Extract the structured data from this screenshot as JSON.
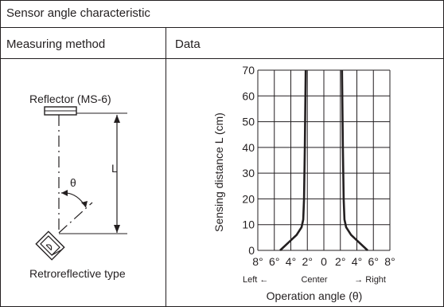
{
  "table": {
    "title": "Sensor angle characteristic",
    "col_method": "Measuring method",
    "col_data": "Data"
  },
  "method": {
    "reflector_label": "Reflector (MS-6)",
    "distance_label": "L",
    "angle_label": "θ",
    "sensor_label": "Retroreflective type"
  },
  "chart_data": {
    "type": "line",
    "xlabel": "Operation angle (θ)",
    "ylabel": "Sensing distance L (cm)",
    "x_tick_labels": [
      "8°",
      "6°",
      "4°",
      "2°",
      "0",
      "2°",
      "4°",
      "6°",
      "8°"
    ],
    "y_tick_labels": [
      "0",
      "10",
      "20",
      "30",
      "40",
      "50",
      "60",
      "70"
    ],
    "direction_labels": {
      "left": "Left ←",
      "center": "Center",
      "right": "→ Right"
    },
    "xlim": [
      -8,
      8
    ],
    "ylim": [
      0,
      70
    ],
    "grid": true,
    "series": [
      {
        "side": "left",
        "points": [
          [
            -5.3,
            0
          ],
          [
            -4.3,
            3
          ],
          [
            -3.3,
            6
          ],
          [
            -2.7,
            9
          ],
          [
            -2.5,
            12
          ],
          [
            -2.4,
            20
          ],
          [
            -2.3,
            40
          ],
          [
            -2.2,
            70
          ]
        ]
      },
      {
        "side": "right",
        "points": [
          [
            5.3,
            0
          ],
          [
            4.3,
            3
          ],
          [
            3.3,
            6
          ],
          [
            2.7,
            9
          ],
          [
            2.5,
            12
          ],
          [
            2.4,
            20
          ],
          [
            2.3,
            40
          ],
          [
            2.2,
            70
          ]
        ]
      }
    ]
  }
}
